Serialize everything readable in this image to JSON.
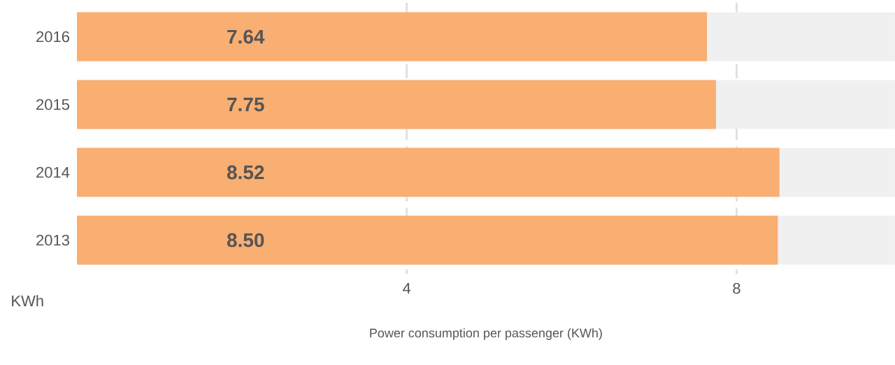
{
  "chart_data": {
    "type": "bar",
    "orientation": "horizontal",
    "categories": [
      "2016",
      "2015",
      "2014",
      "2013"
    ],
    "values": [
      7.64,
      7.75,
      8.52,
      8.5
    ],
    "color": "#f9ae72",
    "xlim": [
      0,
      9.92
    ],
    "xticks": [
      4,
      8
    ],
    "grid": "x",
    "value_labels": [
      "7.64",
      "7.75",
      "8.52",
      "8.50"
    ],
    "xlabel": "Power consumption per passenger (KWh)",
    "annotations": [
      "KWh"
    ]
  }
}
